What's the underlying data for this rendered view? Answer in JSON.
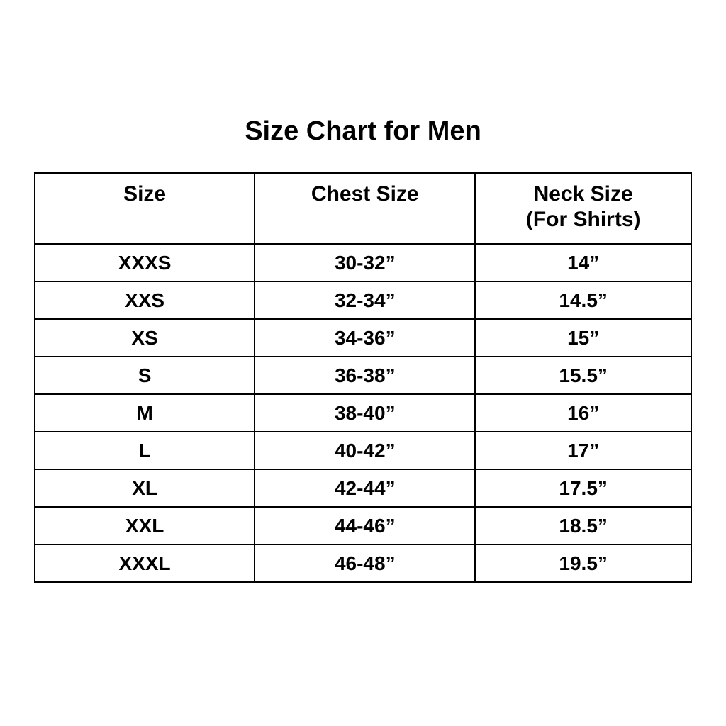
{
  "page": {
    "background_color": "#ffffff",
    "text_color": "#000000",
    "border_color": "#000000"
  },
  "title": "Size Chart for Men",
  "table": {
    "columns": [
      {
        "label": "Size",
        "sublabel": ""
      },
      {
        "label": "Chest Size",
        "sublabel": ""
      },
      {
        "label": "Neck Size",
        "sublabel": "(For Shirts)"
      }
    ],
    "rows": [
      [
        "XXXS",
        "30-32”",
        "14”"
      ],
      [
        "XXS",
        "32-34”",
        "14.5”"
      ],
      [
        "XS",
        "34-36”",
        "15”"
      ],
      [
        "S",
        "36-38”",
        "15.5”"
      ],
      [
        "M",
        "38-40”",
        "16”"
      ],
      [
        "L",
        "40-42”",
        "17”"
      ],
      [
        "XL",
        "42-44”",
        "17.5”"
      ],
      [
        "XXL",
        "44-46”",
        "18.5”"
      ],
      [
        "XXXL",
        "46-48”",
        "19.5”"
      ]
    ]
  }
}
